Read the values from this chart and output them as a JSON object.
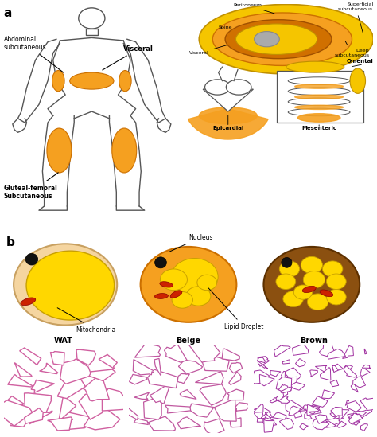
{
  "bg_color": "#ffffff",
  "orange_fat": "#F5A020",
  "dark_orange": "#CC7000",
  "peach": "#F5D5A0",
  "red_mito": "#CC2200",
  "brown_bg": "#8B5010",
  "yellow_lipid": "#FFD700",
  "yellow_outer": "#F5C500",
  "black_nucleus": "#111111",
  "body_edge": "#555555",
  "wat_label": "WAT",
  "beige_label": "Beige",
  "brown_label": "Brown",
  "nucleus_label": "Nucleus",
  "mito_label": "Mitochondria",
  "lipid_label": "Lipid Droplet",
  "abdominal_label": "Abdominal\nsubcutaneous",
  "visceral_label": "Visceral",
  "gluteal_label": "Gluteal-femoral\nSubcutaneous",
  "peritoneum_label": "Peritoneum",
  "spine_label": "Spine",
  "visceral2_label": "Visceral",
  "superficial_label": "Superficial\nsubcutaneous",
  "deep_label": "Deep\nsubcutaneous",
  "omental_label": "Omental",
  "epicardial_label": "Epicardial",
  "mesenteric_label": "Mesenteric"
}
